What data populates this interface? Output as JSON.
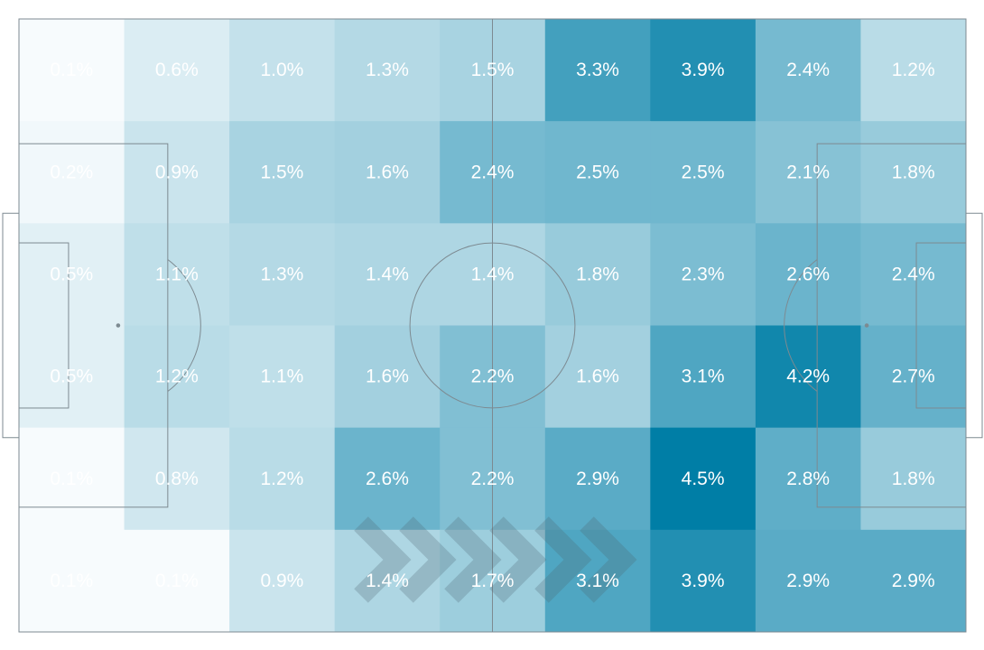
{
  "colors": {
    "scale_low": "#f7fbfd",
    "scale_high": "#007ea6",
    "pitch_lines": "#7d8a91",
    "label_text": "#ffffff",
    "direction_arrows": "#4f6470"
  },
  "chart_data": {
    "type": "heatmap",
    "title": "",
    "rows": 6,
    "cols": 9,
    "unit": "%",
    "values": [
      [
        0.1,
        0.6,
        1.0,
        1.3,
        1.5,
        3.3,
        3.9,
        2.4,
        1.2
      ],
      [
        0.2,
        0.9,
        1.5,
        1.6,
        2.4,
        2.5,
        2.5,
        2.1,
        1.8
      ],
      [
        0.5,
        1.1,
        1.3,
        1.4,
        1.4,
        1.8,
        2.3,
        2.6,
        2.4
      ],
      [
        0.5,
        1.2,
        1.1,
        1.6,
        2.2,
        1.6,
        3.1,
        4.2,
        2.7
      ],
      [
        0.1,
        0.8,
        1.2,
        2.6,
        2.2,
        2.9,
        4.5,
        2.8,
        1.8
      ],
      [
        0.1,
        0.1,
        0.9,
        1.4,
        1.7,
        3.1,
        3.9,
        2.9,
        2.9
      ]
    ],
    "labels": [
      [
        "0.1%",
        "0.6%",
        "1.0%",
        "1.3%",
        "1.5%",
        "3.3%",
        "3.9%",
        "2.4%",
        "1.2%"
      ],
      [
        "0.2%",
        "0.9%",
        "1.5%",
        "1.6%",
        "2.4%",
        "2.5%",
        "2.5%",
        "2.1%",
        "1.8%"
      ],
      [
        "0.5%",
        "1.1%",
        "1.3%",
        "1.4%",
        "1.4%",
        "1.8%",
        "2.3%",
        "2.6%",
        "2.4%"
      ],
      [
        "0.5%",
        "1.2%",
        "1.1%",
        "1.6%",
        "2.2%",
        "1.6%",
        "3.1%",
        "4.2%",
        "2.7%"
      ],
      [
        "0.1%",
        "0.8%",
        "1.2%",
        "2.6%",
        "2.2%",
        "2.9%",
        "4.5%",
        "2.8%",
        "1.8%"
      ],
      [
        "0.1%",
        "0.1%",
        "0.9%",
        "1.4%",
        "1.7%",
        "3.1%",
        "3.9%",
        "2.9%",
        "2.9%"
      ]
    ],
    "value_range": [
      0.1,
      4.5
    ],
    "background": "football pitch",
    "direction_indicator": "attacking left to right",
    "direction_chevrons": 6,
    "legend": "none",
    "grid": false
  }
}
